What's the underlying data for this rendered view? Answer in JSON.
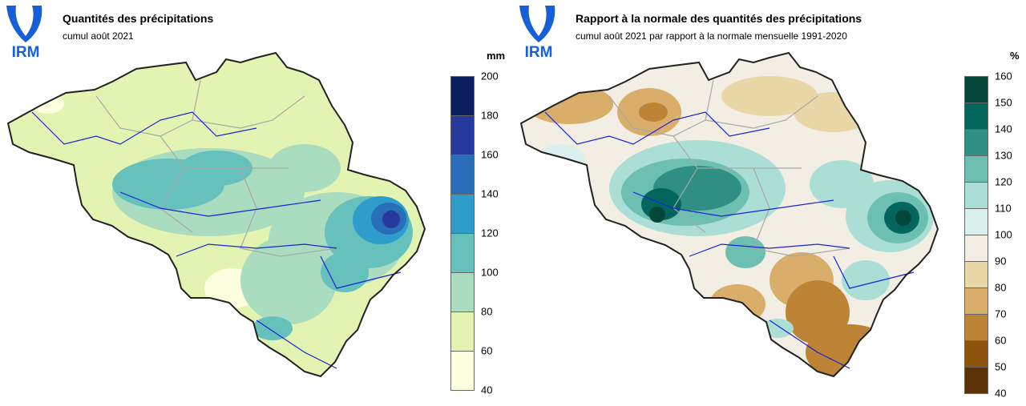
{
  "logo_text": "IRM",
  "colors": {
    "logo_blue": "#1560d8",
    "border": "#222222",
    "province_lines": "#a8a8a8",
    "rivers": "#1a22d8"
  },
  "left_map": {
    "title": "Quantités des précipitations",
    "subtitle": "cumul août 2021",
    "unit": "mm",
    "legend": {
      "ticks": [
        "200",
        "180",
        "160",
        "140",
        "120",
        "100",
        "80",
        "60",
        "40"
      ],
      "colors": [
        "#0b1f5e",
        "#253a9c",
        "#2a6db8",
        "#2f9dcb",
        "#66c1bd",
        "#aadcc0",
        "#e3f4b2",
        "#fdfede"
      ]
    }
  },
  "right_map": {
    "title": "Rapport à la normale des quantités des précipitations",
    "subtitle": "cumul août 2021 par rapport à la normale mensuelle 1991-2020",
    "unit": "%",
    "legend": {
      "ticks": [
        "160",
        "150",
        "140",
        "130",
        "120",
        "110",
        "100",
        "90",
        "80",
        "70",
        "60",
        "50",
        "40"
      ],
      "colors": [
        "#014636",
        "#02665c",
        "#2f8f83",
        "#6dbfb2",
        "#abdfd6",
        "#daf0ec",
        "#f3eee3",
        "#ead7a8",
        "#d8ae6a",
        "#bd8435",
        "#8e530b",
        "#5c3307"
      ]
    }
  }
}
